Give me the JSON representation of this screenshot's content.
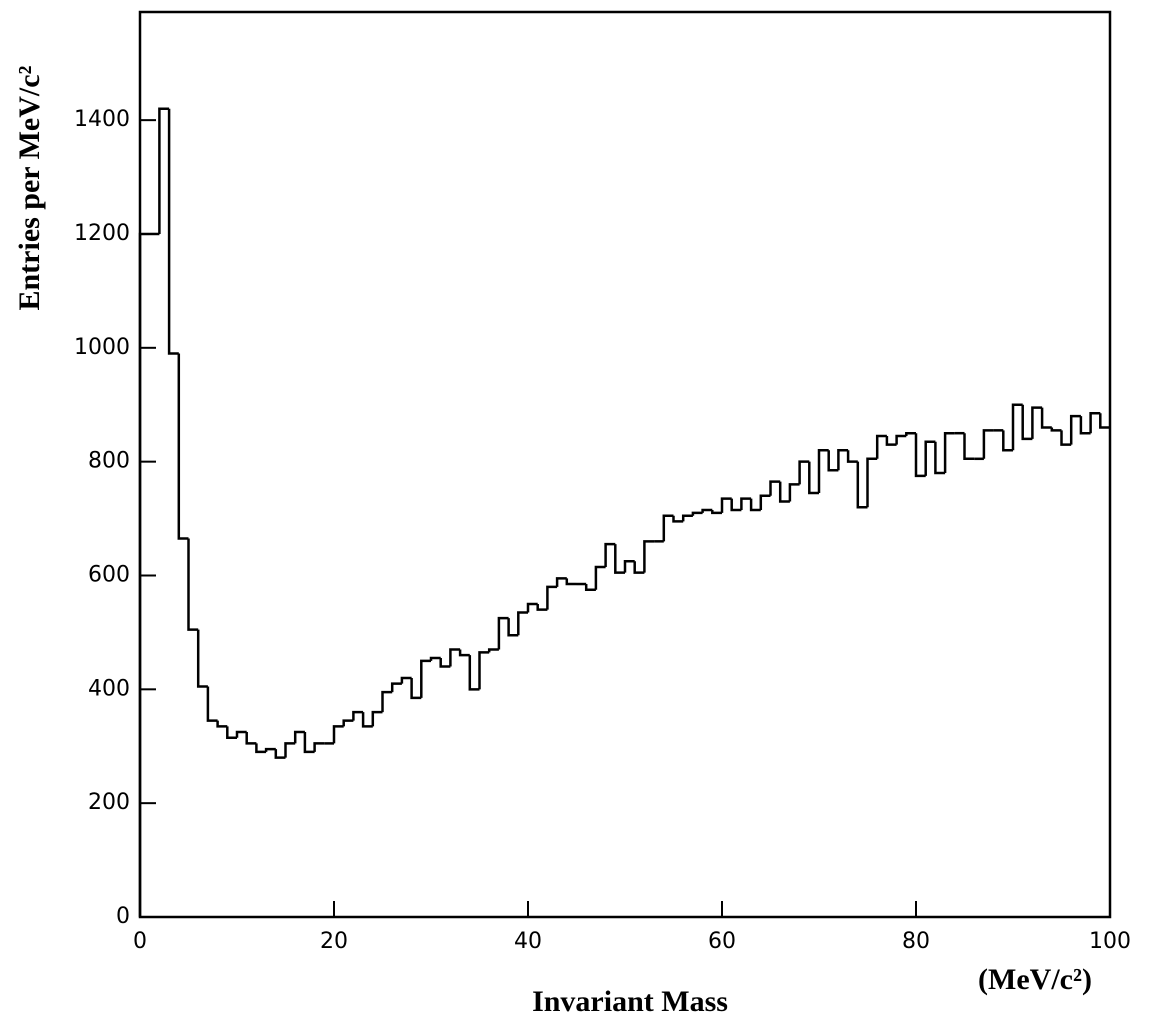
{
  "chart_data": {
    "type": "histogram",
    "xlabel": "Invariant Mass",
    "xunit": "(MeV/c²)",
    "ylabel": "Entries per MeV/c²",
    "bins": [
      0,
      1,
      2,
      3,
      4,
      5,
      6,
      7,
      8,
      9,
      10,
      11,
      12,
      13,
      14,
      15,
      16,
      17,
      18,
      19,
      20,
      21,
      22,
      23,
      24,
      25,
      26,
      27,
      28,
      29,
      30,
      31,
      32,
      33,
      34,
      35,
      36,
      37,
      38,
      39,
      40,
      41,
      42,
      43,
      44,
      45,
      46,
      47,
      48,
      49,
      50,
      51,
      52,
      53,
      54,
      55,
      56,
      57,
      58,
      59,
      60,
      61,
      62,
      63,
      64,
      65,
      66,
      67,
      68,
      69,
      70,
      71,
      72,
      73,
      74,
      75,
      76,
      77,
      78,
      79,
      80,
      81,
      82,
      83,
      84,
      85,
      86,
      87,
      88,
      89,
      90,
      91,
      92,
      93,
      94,
      95,
      96,
      97,
      98,
      99,
      100
    ],
    "counts": [
      1200,
      1200,
      1420,
      990,
      665,
      505,
      405,
      345,
      335,
      315,
      325,
      305,
      290,
      295,
      280,
      305,
      325,
      290,
      305,
      305,
      335,
      345,
      360,
      335,
      360,
      395,
      410,
      420,
      385,
      450,
      455,
      440,
      470,
      460,
      400,
      465,
      470,
      525,
      495,
      535,
      550,
      540,
      580,
      595,
      585,
      585,
      575,
      615,
      655,
      605,
      625,
      605,
      660,
      660,
      705,
      695,
      705,
      710,
      715,
      710,
      735,
      715,
      735,
      715,
      740,
      765,
      730,
      760,
      800,
      745,
      820,
      785,
      820,
      800,
      720,
      805,
      845,
      830,
      845,
      850,
      775,
      835,
      780,
      850,
      850,
      805,
      805,
      855,
      855,
      820,
      900,
      840,
      895,
      860,
      855,
      830,
      880,
      850,
      885,
      860
    ],
    "color": "#000000",
    "xlim": [
      0,
      100
    ],
    "xticks": [
      0,
      20,
      40,
      60,
      80,
      100
    ],
    "ylim": [
      0,
      1590
    ],
    "yticks": [
      0,
      200,
      400,
      600,
      800,
      1000,
      1200,
      1400
    ]
  }
}
